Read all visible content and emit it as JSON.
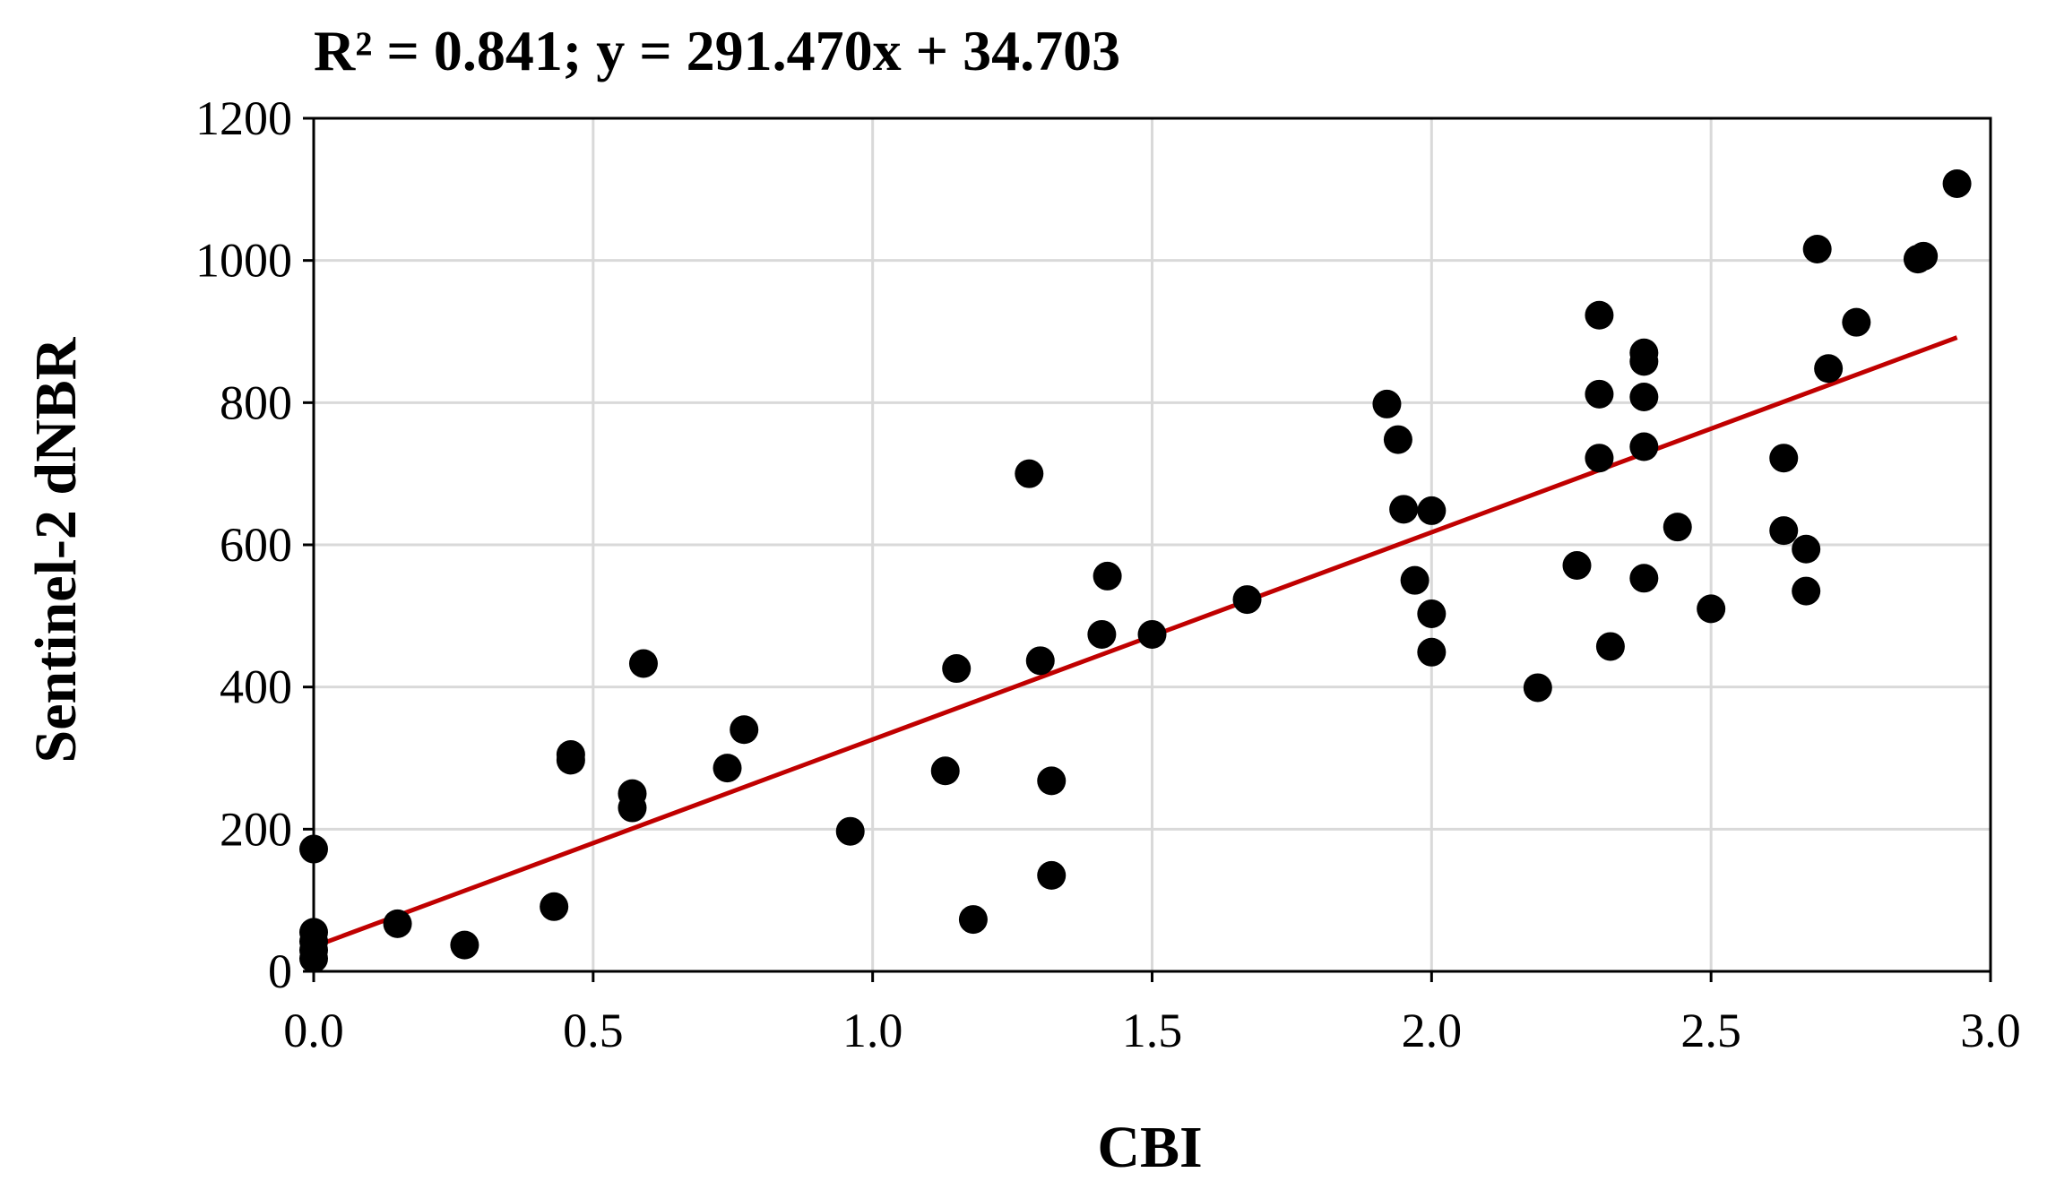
{
  "chart_data": {
    "type": "scatter",
    "title": "R² = 0.841; y = 291.470x + 34.703",
    "xlabel": "CBI",
    "ylabel": "Sentinel-2 dNBR",
    "xlim": [
      0,
      3.0
    ],
    "ylim": [
      0,
      1200
    ],
    "x_ticks": [
      "0.0",
      "0.5",
      "1.0",
      "1.5",
      "2.0",
      "2.5",
      "3.0"
    ],
    "y_ticks": [
      "0",
      "200",
      "400",
      "600",
      "800",
      "1000",
      "1200"
    ],
    "grid": true,
    "legend": "none",
    "point_color": "#000000",
    "trendline_color": "#c00000",
    "trendline": {
      "slope": 291.47,
      "intercept": 34.703,
      "x_range": [
        0,
        2.94
      ]
    },
    "points": [
      {
        "x": 0.0,
        "y": 172
      },
      {
        "x": 0.0,
        "y": 55
      },
      {
        "x": 0.0,
        "y": 42
      },
      {
        "x": 0.0,
        "y": 30
      },
      {
        "x": 0.0,
        "y": 18
      },
      {
        "x": 0.15,
        "y": 67
      },
      {
        "x": 0.27,
        "y": 37
      },
      {
        "x": 0.43,
        "y": 91
      },
      {
        "x": 0.46,
        "y": 305
      },
      {
        "x": 0.46,
        "y": 297
      },
      {
        "x": 0.57,
        "y": 250
      },
      {
        "x": 0.57,
        "y": 230
      },
      {
        "x": 0.59,
        "y": 433
      },
      {
        "x": 0.74,
        "y": 286
      },
      {
        "x": 0.77,
        "y": 340
      },
      {
        "x": 0.96,
        "y": 197
      },
      {
        "x": 1.13,
        "y": 282
      },
      {
        "x": 1.15,
        "y": 426
      },
      {
        "x": 1.18,
        "y": 73
      },
      {
        "x": 1.28,
        "y": 700
      },
      {
        "x": 1.3,
        "y": 437
      },
      {
        "x": 1.32,
        "y": 268
      },
      {
        "x": 1.32,
        "y": 135
      },
      {
        "x": 1.41,
        "y": 474
      },
      {
        "x": 1.42,
        "y": 556
      },
      {
        "x": 1.5,
        "y": 474
      },
      {
        "x": 1.67,
        "y": 523
      },
      {
        "x": 1.92,
        "y": 798
      },
      {
        "x": 1.94,
        "y": 748
      },
      {
        "x": 1.95,
        "y": 650
      },
      {
        "x": 1.97,
        "y": 550
      },
      {
        "x": 2.0,
        "y": 648
      },
      {
        "x": 2.0,
        "y": 503
      },
      {
        "x": 2.0,
        "y": 449
      },
      {
        "x": 2.19,
        "y": 399
      },
      {
        "x": 2.26,
        "y": 571
      },
      {
        "x": 2.3,
        "y": 923
      },
      {
        "x": 2.3,
        "y": 812
      },
      {
        "x": 2.3,
        "y": 722
      },
      {
        "x": 2.32,
        "y": 457
      },
      {
        "x": 2.38,
        "y": 870
      },
      {
        "x": 2.38,
        "y": 858
      },
      {
        "x": 2.38,
        "y": 808
      },
      {
        "x": 2.38,
        "y": 738
      },
      {
        "x": 2.38,
        "y": 553
      },
      {
        "x": 2.44,
        "y": 625
      },
      {
        "x": 2.5,
        "y": 510
      },
      {
        "x": 2.63,
        "y": 722
      },
      {
        "x": 2.63,
        "y": 620
      },
      {
        "x": 2.67,
        "y": 594
      },
      {
        "x": 2.67,
        "y": 535
      },
      {
        "x": 2.69,
        "y": 1016
      },
      {
        "x": 2.71,
        "y": 848
      },
      {
        "x": 2.76,
        "y": 913
      },
      {
        "x": 2.87,
        "y": 1002
      },
      {
        "x": 2.88,
        "y": 1006
      },
      {
        "x": 2.94,
        "y": 1108
      }
    ]
  }
}
